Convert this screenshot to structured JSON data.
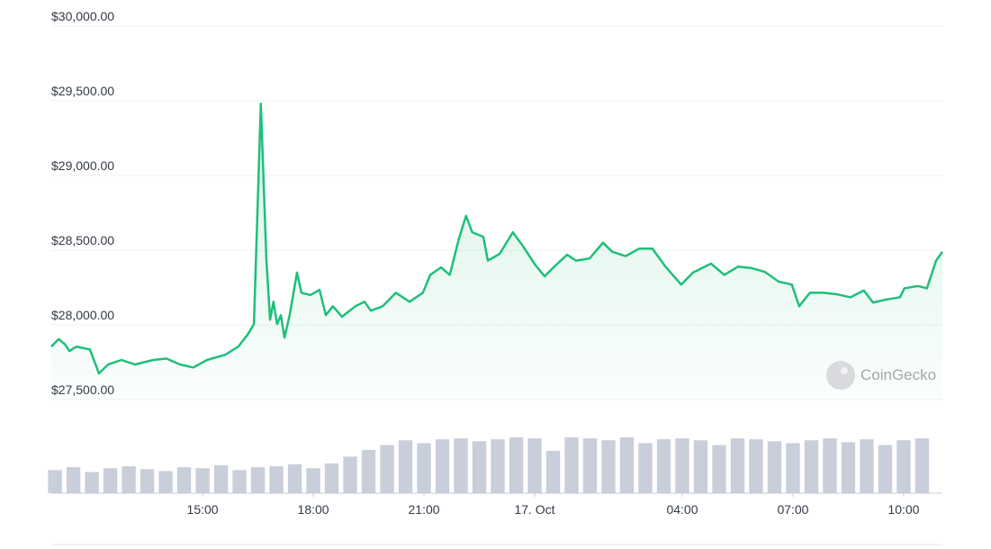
{
  "chart_data": {
    "type": "line",
    "color": "#1fbf7a",
    "volume_color": "#c9cedb",
    "watermark": "CoinGecko",
    "grid": true,
    "x": [
      10.9,
      11.1,
      11.27,
      11.39,
      11.58,
      11.95,
      12.19,
      12.44,
      12.8,
      13.17,
      13.66,
      14.02,
      14.39,
      14.75,
      15.12,
      15.61,
      15.97,
      16.22,
      16.39,
      16.58,
      16.73,
      16.83,
      16.92,
      17.02,
      17.12,
      17.22,
      17.36,
      17.56,
      17.68,
      17.92,
      18.17,
      18.34,
      18.53,
      18.78,
      19.14,
      19.39,
      19.56,
      19.88,
      20.24,
      20.61,
      20.97,
      21.17,
      21.46,
      21.7,
      21.95,
      22.14,
      22.31,
      22.61,
      22.73,
      23.05,
      23.41,
      23.66,
      24.02,
      24.27,
      24.51,
      24.88,
      25.12,
      25.49,
      25.85,
      26.1,
      26.46,
      26.83,
      27.19,
      27.56,
      27.97,
      28.29,
      28.78,
      29.14,
      29.51,
      29.88,
      30.24,
      30.61,
      30.97,
      31.17,
      31.46,
      31.83,
      32.19,
      32.56,
      32.92,
      33.17,
      33.53,
      33.9,
      34.02,
      34.39,
      34.63,
      34.88,
      35.05
    ],
    "values": [
      27855,
      27905,
      27870,
      27825,
      27855,
      27835,
      27675,
      27735,
      27765,
      27735,
      27765,
      27775,
      27735,
      27715,
      27765,
      27800,
      27855,
      27935,
      28005,
      29480,
      28430,
      28035,
      28155,
      28005,
      28065,
      27915,
      28065,
      28350,
      28215,
      28200,
      28235,
      28065,
      28125,
      28055,
      28125,
      28155,
      28095,
      28125,
      28215,
      28155,
      28215,
      28335,
      28385,
      28335,
      28580,
      28730,
      28620,
      28590,
      28430,
      28475,
      28620,
      28535,
      28400,
      28325,
      28385,
      28470,
      28430,
      28445,
      28550,
      28490,
      28460,
      28510,
      28510,
      28385,
      28270,
      28350,
      28410,
      28335,
      28390,
      28380,
      28355,
      28290,
      28270,
      28125,
      28215,
      28215,
      28205,
      28185,
      28230,
      28150,
      28170,
      28185,
      28245,
      28260,
      28245,
      28430,
      28490
    ],
    "volume": {
      "x": [
        11,
        11.5,
        12,
        12.5,
        13,
        13.5,
        14,
        14.5,
        15,
        15.5,
        16,
        16.5,
        17,
        17.5,
        18,
        18.5,
        19,
        19.5,
        20,
        20.5,
        21,
        21.5,
        22,
        22.5,
        23,
        23.5,
        24,
        24.5,
        25,
        25.5,
        26,
        26.5,
        27,
        27.5,
        28,
        28.5,
        29,
        29.5,
        30,
        30.5,
        31,
        31.5,
        32,
        32.5,
        33,
        33.5,
        34,
        34.5
      ],
      "values": [
        24,
        27,
        22,
        26,
        28,
        25,
        23,
        27,
        26,
        29,
        24,
        27,
        28,
        30,
        26,
        31,
        38,
        45,
        50,
        55,
        52,
        56,
        57,
        54,
        56,
        58,
        57,
        44,
        58,
        57,
        55,
        58,
        52,
        56,
        57,
        55,
        50,
        57,
        56,
        54,
        52,
        55,
        57,
        53,
        56,
        50,
        55,
        57
      ]
    },
    "xlim": [
      10.9,
      35.05
    ],
    "xticks": [
      {
        "value": 15,
        "label": "15:00"
      },
      {
        "value": 18,
        "label": "18:00"
      },
      {
        "value": 21,
        "label": "21:00"
      },
      {
        "value": 24,
        "label": "17. Oct"
      },
      {
        "value": 28,
        "label": "04:00"
      },
      {
        "value": 31,
        "label": "07:00"
      },
      {
        "value": 34,
        "label": "10:00"
      }
    ],
    "ylim": [
      27500,
      30000
    ],
    "yticks": [
      {
        "value": 27500,
        "label": "$27,500.00"
      },
      {
        "value": 28000,
        "label": "$28,000.00"
      },
      {
        "value": 28500,
        "label": "$28,500.00"
      },
      {
        "value": 29000,
        "label": "$29,000.00"
      },
      {
        "value": 29500,
        "label": "$29,500.00"
      },
      {
        "value": 30000,
        "label": "$30,000.00"
      }
    ]
  }
}
